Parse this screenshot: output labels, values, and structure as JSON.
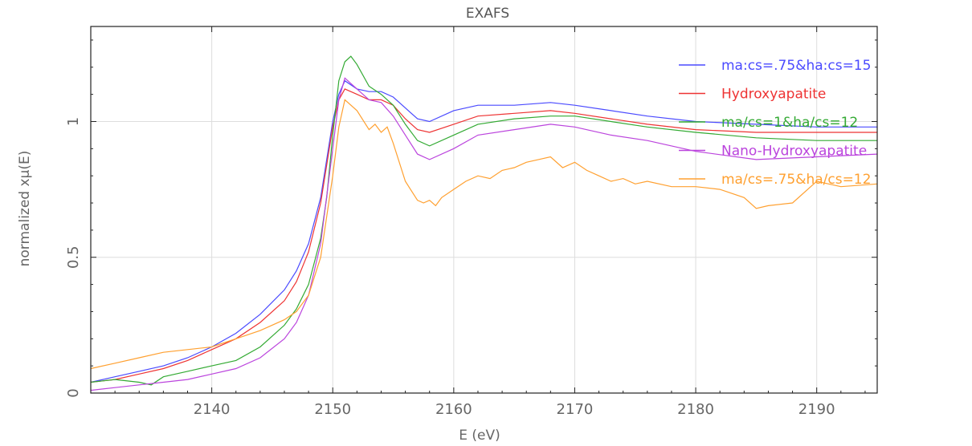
{
  "chart_data": {
    "type": "line",
    "title": "EXAFS",
    "xlabel": "E (eV)",
    "ylabel": "normalized xμ(E)",
    "xlim": [
      2130,
      2195
    ],
    "ylim": [
      0,
      1.35
    ],
    "xticks": [
      2140,
      2150,
      2160,
      2170,
      2180,
      2190
    ],
    "yticks": [
      0,
      0.5,
      1
    ],
    "ytick_labels": [
      "0",
      "0.5",
      "1"
    ],
    "grid": true,
    "legend_position": "top-right",
    "series": [
      {
        "name": "ma:cs=.75&ha:cs=15",
        "color": "#4a4aff",
        "x": [
          2130,
          2132,
          2134,
          2136,
          2138,
          2140,
          2142,
          2144,
          2146,
          2147,
          2148,
          2149,
          2150,
          2150.5,
          2151,
          2152,
          2153,
          2154,
          2155,
          2156,
          2157,
          2158,
          2160,
          2162,
          2165,
          2168,
          2170,
          2173,
          2176,
          2180,
          2185,
          2190,
          2195
        ],
        "y": [
          0.04,
          0.06,
          0.08,
          0.1,
          0.13,
          0.17,
          0.22,
          0.29,
          0.38,
          0.45,
          0.55,
          0.72,
          1.0,
          1.1,
          1.15,
          1.12,
          1.11,
          1.11,
          1.09,
          1.05,
          1.01,
          1.0,
          1.04,
          1.06,
          1.06,
          1.07,
          1.06,
          1.04,
          1.02,
          1.0,
          0.99,
          0.98,
          0.98
        ]
      },
      {
        "name": "Hydroxyapatite",
        "color": "#ee3333",
        "x": [
          2130,
          2132,
          2134,
          2136,
          2138,
          2140,
          2142,
          2144,
          2146,
          2147,
          2148,
          2149,
          2150,
          2150.5,
          2151,
          2152,
          2153,
          2154,
          2155,
          2156,
          2157,
          2158,
          2160,
          2162,
          2165,
          2168,
          2170,
          2173,
          2176,
          2180,
          2185,
          2190,
          2195
        ],
        "y": [
          0.04,
          0.05,
          0.07,
          0.09,
          0.12,
          0.16,
          0.2,
          0.26,
          0.34,
          0.41,
          0.52,
          0.7,
          0.98,
          1.08,
          1.12,
          1.1,
          1.08,
          1.08,
          1.06,
          1.01,
          0.97,
          0.96,
          0.99,
          1.02,
          1.03,
          1.04,
          1.03,
          1.01,
          0.99,
          0.97,
          0.96,
          0.96,
          0.96
        ]
      },
      {
        "name": "ma/cs=1&ha/cs=12",
        "color": "#33aa33",
        "x": [
          2130,
          2132,
          2134,
          2135,
          2136,
          2138,
          2140,
          2142,
          2144,
          2146,
          2147,
          2148,
          2149,
          2149.5,
          2150,
          2150.5,
          2151,
          2151.5,
          2152,
          2153,
          2154,
          2155,
          2156,
          2157,
          2158,
          2160,
          2162,
          2165,
          2168,
          2170,
          2173,
          2176,
          2180,
          2185,
          2190,
          2195
        ],
        "y": [
          0.04,
          0.05,
          0.04,
          0.03,
          0.06,
          0.08,
          0.1,
          0.12,
          0.17,
          0.25,
          0.31,
          0.4,
          0.57,
          0.72,
          0.95,
          1.15,
          1.22,
          1.24,
          1.21,
          1.13,
          1.1,
          1.06,
          0.99,
          0.93,
          0.91,
          0.95,
          0.99,
          1.01,
          1.02,
          1.02,
          1.0,
          0.98,
          0.96,
          0.94,
          0.93,
          0.93
        ]
      },
      {
        "name": "Nano-Hydroxyapatite",
        "color": "#bb44dd",
        "x": [
          2130,
          2132,
          2134,
          2136,
          2138,
          2140,
          2142,
          2144,
          2146,
          2147,
          2148,
          2149,
          2150,
          2150.5,
          2151,
          2152,
          2153,
          2154,
          2155,
          2156,
          2157,
          2158,
          2160,
          2162,
          2165,
          2168,
          2170,
          2173,
          2176,
          2180,
          2185,
          2190,
          2195
        ],
        "y": [
          0.01,
          0.02,
          0.03,
          0.04,
          0.05,
          0.07,
          0.09,
          0.13,
          0.2,
          0.26,
          0.36,
          0.55,
          0.9,
          1.08,
          1.16,
          1.12,
          1.08,
          1.07,
          1.02,
          0.95,
          0.88,
          0.86,
          0.9,
          0.95,
          0.97,
          0.99,
          0.98,
          0.95,
          0.93,
          0.89,
          0.86,
          0.87,
          0.88
        ]
      },
      {
        "name": "ma/cs=.75&ha/cs=12",
        "color": "#ffa030",
        "x": [
          2130,
          2132,
          2134,
          2136,
          2138,
          2140,
          2142,
          2144,
          2146,
          2147,
          2148,
          2149,
          2150,
          2150.5,
          2151,
          2152,
          2153,
          2153.5,
          2154,
          2154.5,
          2155,
          2156,
          2157,
          2157.5,
          2158,
          2158.5,
          2159,
          2160,
          2161,
          2162,
          2163,
          2164,
          2165,
          2166,
          2167,
          2168,
          2169,
          2170,
          2171,
          2172,
          2173,
          2174,
          2175,
          2176,
          2178,
          2180,
          2182,
          2184,
          2185,
          2186,
          2188,
          2190,
          2192,
          2195
        ],
        "y": [
          0.09,
          0.11,
          0.13,
          0.15,
          0.16,
          0.17,
          0.2,
          0.23,
          0.27,
          0.3,
          0.36,
          0.5,
          0.8,
          0.98,
          1.08,
          1.04,
          0.97,
          0.99,
          0.96,
          0.98,
          0.92,
          0.78,
          0.71,
          0.7,
          0.71,
          0.69,
          0.72,
          0.75,
          0.78,
          0.8,
          0.79,
          0.82,
          0.83,
          0.85,
          0.86,
          0.87,
          0.83,
          0.85,
          0.82,
          0.8,
          0.78,
          0.79,
          0.77,
          0.78,
          0.76,
          0.76,
          0.75,
          0.72,
          0.68,
          0.69,
          0.7,
          0.78,
          0.76,
          0.77
        ]
      }
    ]
  }
}
